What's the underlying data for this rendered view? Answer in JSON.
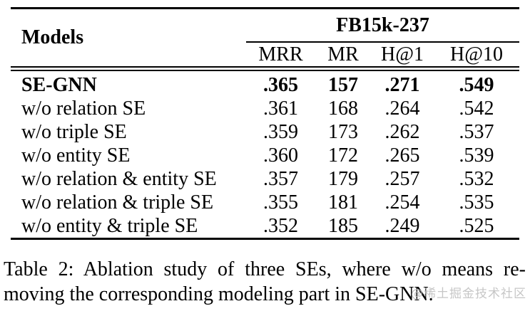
{
  "table": {
    "header": {
      "models_label": "Models",
      "dataset_label": "FB15k-237",
      "metric_labels": [
        "MRR",
        "MR",
        "H@1",
        "H@10"
      ]
    },
    "rows": [
      {
        "model": "SE-GNN",
        "highlight": true,
        "metrics": [
          ".365",
          "157",
          ".271",
          ".549"
        ]
      },
      {
        "model": "w/o relation SE",
        "highlight": false,
        "metrics": [
          ".361",
          "168",
          ".264",
          ".542"
        ]
      },
      {
        "model": "w/o triple SE",
        "highlight": false,
        "metrics": [
          ".359",
          "173",
          ".262",
          ".537"
        ]
      },
      {
        "model": "w/o entity SE",
        "highlight": false,
        "metrics": [
          ".360",
          "172",
          ".265",
          ".539"
        ]
      },
      {
        "model": "w/o relation & entity SE",
        "highlight": false,
        "metrics": [
          ".357",
          "179",
          ".257",
          ".532"
        ]
      },
      {
        "model": "w/o relation & triple SE",
        "highlight": false,
        "metrics": [
          ".355",
          "181",
          ".254",
          ".535"
        ]
      },
      {
        "model": "w/o entity & triple SE",
        "highlight": false,
        "metrics": [
          ".352",
          "185",
          ".249",
          ".525"
        ]
      }
    ]
  },
  "caption": {
    "line1": "Table 2: Ablation study of three SEs, where w/o means re-",
    "line2": "moving the corresponding modeling part in SE-GNN."
  },
  "watermark": {
    "text": "@稀土掘金技术社区",
    "color": "#bdbdbd"
  },
  "colors": {
    "background": "#ffffff",
    "text": "#000000",
    "rule": "#000000"
  }
}
